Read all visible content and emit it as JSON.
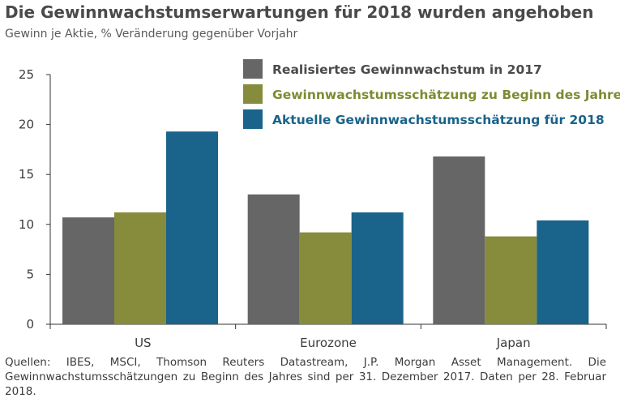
{
  "title": "Die Gewinnwachstumserwartungen für 2018 wurden angehoben",
  "subtitle": "Gewinn je Aktie, % Veränderung gegenüber Vorjahr",
  "source": "Quellen: IBES, MSCI, Thomson Reuters Datastream, J.P. Morgan Asset Management. Die Gewinnwachstumsschätzungen zu Beginn des Jahres sind per 31. Dezember 2017. Daten per 28. Februar 2018.",
  "chart_data": {
    "type": "bar",
    "categories": [
      "US",
      "Eurozone",
      "Japan"
    ],
    "series": [
      {
        "name": "Realisiertes Gewinnwachstum in 2017",
        "values": [
          10.7,
          13.0,
          16.8
        ],
        "color": "#666666",
        "label_color": "#4a4a4a"
      },
      {
        "name": "Gewinnwachstumsschätzung zu Beginn des Jahres",
        "values": [
          11.2,
          9.2,
          8.8
        ],
        "color": "#868c3c",
        "label_color": "#7f8a33"
      },
      {
        "name": "Aktuelle Gewinnwachstumsschätzung für 2018",
        "values": [
          19.3,
          11.2,
          10.4
        ],
        "color": "#1a638a",
        "label_color": "#1a638a"
      }
    ],
    "ylim": [
      0,
      25
    ],
    "yticks": [
      0,
      5,
      10,
      15,
      20,
      25
    ],
    "grid": false,
    "legend": "top-right"
  }
}
